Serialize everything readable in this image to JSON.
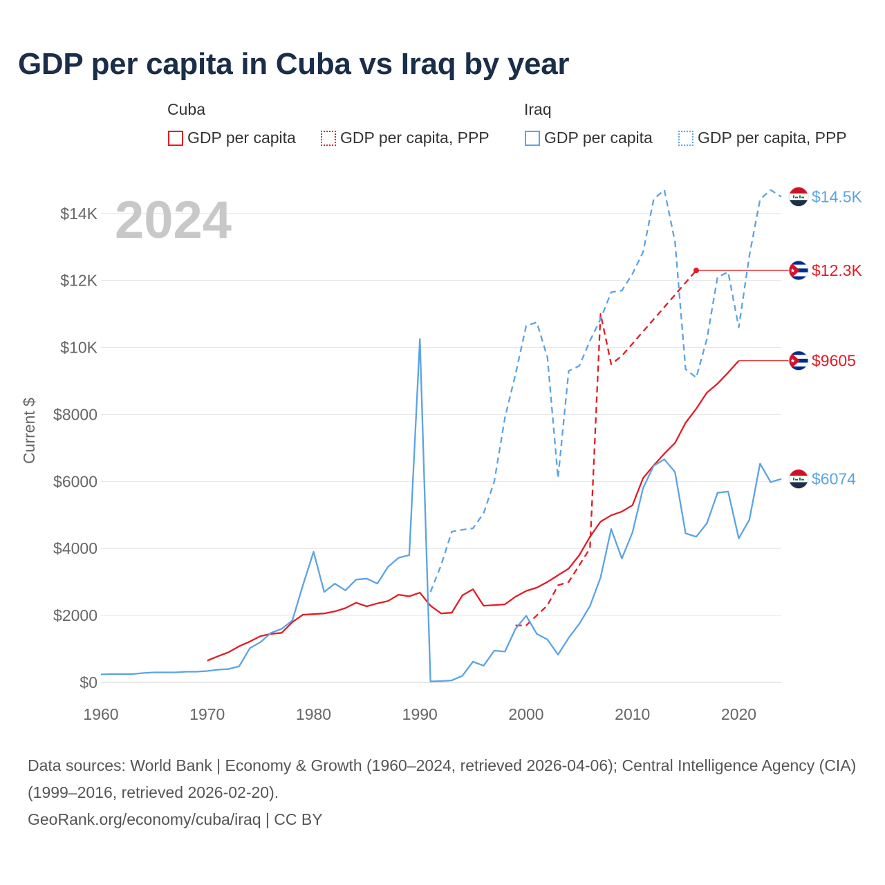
{
  "title": "GDP per capita in Cuba vs Iraq by year",
  "legend": {
    "groups": [
      {
        "name": "Cuba",
        "items": [
          "GDP per capita",
          "GDP per capita, PPP"
        ]
      },
      {
        "name": "Iraq",
        "items": [
          "GDP per capita",
          "GDP per capita, PPP"
        ]
      }
    ]
  },
  "colors": {
    "cuba": "#e31b23",
    "iraq": "#5ba3e6",
    "grid": "#e6e6e6",
    "year": "#c8c8c8"
  },
  "chart_data": {
    "type": "line",
    "year_watermark": "2024",
    "ylabel": "Current $",
    "xlim": [
      1960,
      2024
    ],
    "ylim": [
      0,
      14800
    ],
    "x_ticks": [
      1960,
      1970,
      1980,
      1990,
      2000,
      2010,
      2020
    ],
    "x_tick_labels": [
      "1960",
      "1970",
      "1980",
      "1990",
      "2000",
      "2010",
      "2020"
    ],
    "y_ticks": [
      0,
      2000,
      4000,
      6000,
      8000,
      10000,
      12000,
      14000
    ],
    "y_tick_labels": [
      "$0",
      "$2000",
      "$4000",
      "$6000",
      "$8000",
      "$10K",
      "$12K",
      "$14K"
    ],
    "series": [
      {
        "name": "Cuba GDP per capita",
        "country": "cuba",
        "dash": false,
        "end_label": "$9605",
        "extend_to": 2024,
        "x": [
          1970,
          1971,
          1972,
          1973,
          1974,
          1975,
          1976,
          1977,
          1978,
          1979,
          1980,
          1981,
          1982,
          1983,
          1984,
          1985,
          1986,
          1987,
          1988,
          1989,
          1990,
          1991,
          1992,
          1993,
          1994,
          1995,
          1996,
          1997,
          1998,
          1999,
          2000,
          2001,
          2002,
          2003,
          2004,
          2005,
          2006,
          2007,
          2008,
          2009,
          2010,
          2011,
          2012,
          2013,
          2014,
          2015,
          2016,
          2017,
          2018,
          2019,
          2020
        ],
        "values": [
          650,
          780,
          900,
          1080,
          1220,
          1380,
          1450,
          1480,
          1800,
          2020,
          2040,
          2060,
          2120,
          2220,
          2380,
          2270,
          2360,
          2430,
          2620,
          2570,
          2680,
          2290,
          2060,
          2080,
          2600,
          2780,
          2290,
          2310,
          2330,
          2560,
          2730,
          2830,
          3000,
          3200,
          3400,
          3800,
          4350,
          4800,
          4990,
          5100,
          5290,
          6100,
          6480,
          6830,
          7150,
          7750,
          8170,
          8650,
          8920,
          9250,
          9605
        ]
      },
      {
        "name": "Cuba GDP per capita, PPP",
        "country": "cuba",
        "dash": true,
        "end_label": "$12.3K",
        "extend_to": 2024,
        "end_dot": true,
        "x": [
          1999,
          2000,
          2001,
          2002,
          2003,
          2004,
          2005,
          2006,
          2007,
          2008,
          2009,
          2016
        ],
        "values": [
          1700,
          1700,
          2000,
          2300,
          2900,
          3000,
          3500,
          4000,
          11000,
          9500,
          9750,
          12300
        ]
      },
      {
        "name": "Iraq GDP per capita",
        "country": "iraq",
        "dash": false,
        "end_label": "$6074",
        "x": [
          1960,
          1961,
          1962,
          1963,
          1964,
          1965,
          1966,
          1967,
          1968,
          1969,
          1970,
          1971,
          1972,
          1973,
          1974,
          1975,
          1976,
          1977,
          1978,
          1979,
          1980,
          1981,
          1982,
          1983,
          1984,
          1985,
          1986,
          1987,
          1988,
          1989,
          1990,
          1991,
          1992,
          1993,
          1994,
          1995,
          1996,
          1997,
          1998,
          1999,
          2000,
          2001,
          2002,
          2003,
          2004,
          2005,
          2006,
          2007,
          2008,
          2009,
          2010,
          2011,
          2012,
          2013,
          2014,
          2015,
          2016,
          2017,
          2018,
          2019,
          2020,
          2021,
          2022,
          2023,
          2024
        ],
        "values": [
          240,
          250,
          250,
          250,
          280,
          300,
          300,
          300,
          320,
          320,
          340,
          380,
          400,
          480,
          1020,
          1200,
          1480,
          1600,
          1850,
          2900,
          3900,
          2700,
          2950,
          2750,
          3070,
          3100,
          2950,
          3450,
          3720,
          3800,
          10250,
          30,
          40,
          60,
          200,
          620,
          500,
          950,
          920,
          1600,
          1990,
          1450,
          1280,
          830,
          1330,
          1750,
          2280,
          3130,
          4580,
          3700,
          4480,
          5800,
          6470,
          6660,
          6280,
          4450,
          4350,
          4750,
          5660,
          5700,
          4300,
          4860,
          6530,
          5980,
          6074
        ]
      },
      {
        "name": "Iraq GDP per capita, PPP",
        "country": "iraq",
        "dash": true,
        "end_label": "$14.5K",
        "x": [
          1991,
          1992,
          1993,
          1994,
          1995,
          1996,
          1997,
          1998,
          1999,
          2000,
          2001,
          2002,
          2003,
          2004,
          2005,
          2006,
          2007,
          2008,
          2009,
          2010,
          2011,
          2012,
          2013,
          2014,
          2015,
          2016,
          2017,
          2018,
          2019,
          2020,
          2021,
          2022,
          2023,
          2024
        ],
        "values": [
          2700,
          3500,
          4500,
          4560,
          4600,
          5050,
          6000,
          7900,
          9200,
          10650,
          10750,
          9700,
          6100,
          9300,
          9450,
          10200,
          10850,
          11650,
          11700,
          12200,
          12850,
          14430,
          14700,
          13150,
          9350,
          9100,
          10250,
          12100,
          12250,
          10600,
          12750,
          14420,
          14700,
          14500
        ]
      }
    ]
  },
  "footer": {
    "sources": "Data sources: World Bank | Economy & Growth (1960–2024, retrieved 2026-04-06); Central Intelligence Agency (CIA) (1999–2016, retrieved 2026-02-20).",
    "credit": "GeoRank.org/economy/cuba/iraq | CC BY"
  }
}
